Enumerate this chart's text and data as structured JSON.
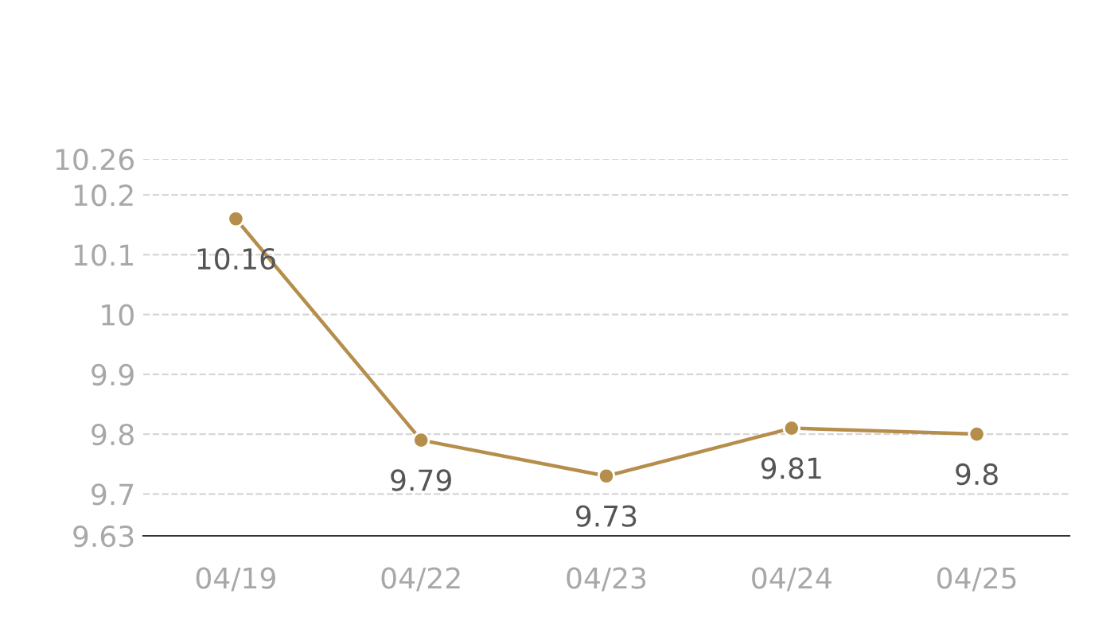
{
  "chart_data": {
    "type": "line",
    "categories": [
      "04/19",
      "04/22",
      "04/23",
      "04/24",
      "04/25"
    ],
    "series": [
      {
        "color": "#b58e4c",
        "values": [
          10.16,
          9.79,
          9.73,
          9.81,
          9.8
        ]
      }
    ],
    "ylim": [
      9.63,
      10.26
    ],
    "yticks": [
      9.63,
      9.7,
      9.8,
      9.9,
      10,
      10.1,
      10.2,
      10.26
    ],
    "grid": "y",
    "marker": "circle",
    "line_style": "solid",
    "data_labels": true
  }
}
